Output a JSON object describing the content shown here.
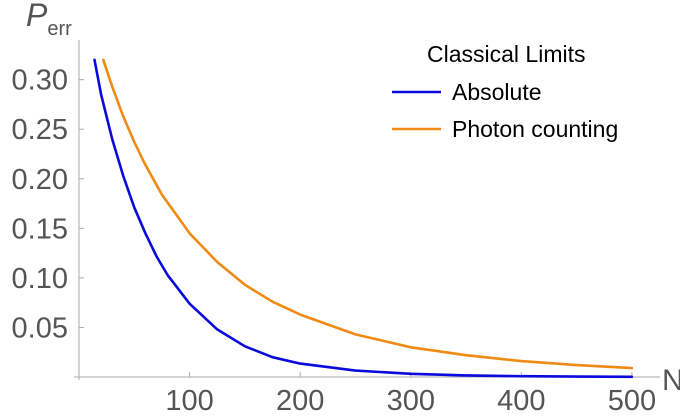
{
  "chart_data": {
    "type": "line",
    "title": "",
    "ylabel_main": "P",
    "ylabel_sub": "err",
    "xlabel": "N",
    "xlim": [
      0,
      510
    ],
    "ylim": [
      0,
      0.34
    ],
    "x_ticks": [
      100,
      200,
      300,
      400,
      500
    ],
    "x_tick_labels": [
      "100",
      "200",
      "300",
      "400",
      "500"
    ],
    "y_ticks": [
      0.05,
      0.1,
      0.15,
      0.2,
      0.25,
      0.3
    ],
    "y_tick_labels": [
      "0.05",
      "0.10",
      "0.15",
      "0.20",
      "0.25",
      "0.30"
    ],
    "legend": {
      "title": "Classical Limits",
      "position": "top-right"
    },
    "series": [
      {
        "name": "Absolute",
        "color": "#0a0adc",
        "x": [
          14,
          20,
          30,
          40,
          50,
          60,
          70,
          80,
          100,
          125,
          150,
          175,
          200,
          250,
          300,
          350,
          400,
          450,
          500
        ],
        "y": [
          0.32,
          0.285,
          0.24,
          0.203,
          0.171,
          0.145,
          0.122,
          0.103,
          0.074,
          0.048,
          0.031,
          0.02,
          0.0135,
          0.0065,
          0.0032,
          0.0016,
          0.0008,
          0.0004,
          0.0002
        ]
      },
      {
        "name": "Photon counting",
        "color": "#ef8a14",
        "x": [
          22,
          30,
          40,
          50,
          60,
          75,
          100,
          125,
          150,
          175,
          200,
          250,
          300,
          350,
          400,
          450,
          500
        ],
        "y": [
          0.32,
          0.293,
          0.263,
          0.237,
          0.214,
          0.184,
          0.145,
          0.116,
          0.093,
          0.076,
          0.063,
          0.043,
          0.03,
          0.022,
          0.016,
          0.012,
          0.009
        ]
      }
    ]
  }
}
